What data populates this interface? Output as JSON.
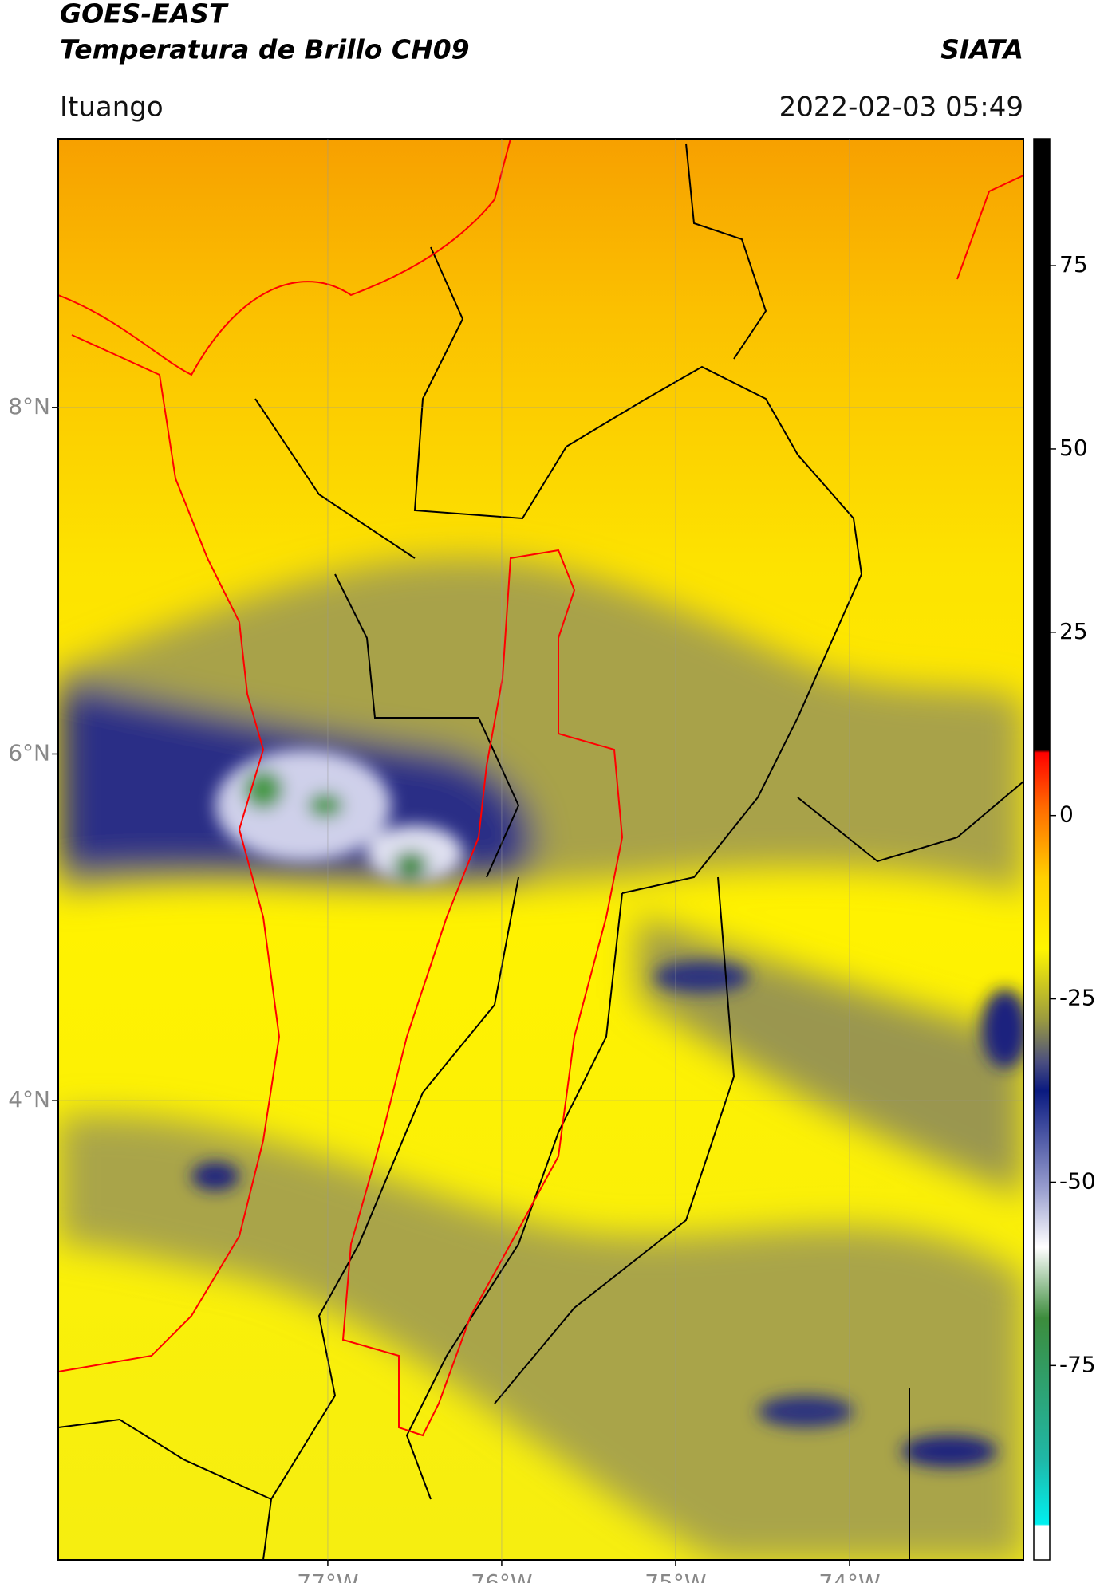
{
  "header": {
    "title": "GOES-EAST",
    "subtitle": "Temperatura de Brillo CH09",
    "source": "SIATA",
    "location": "Ituango",
    "timestamp": "2022-02-03 05:49"
  },
  "map": {
    "xlim": [
      -78.55,
      -73.0
    ],
    "ylim": [
      1.35,
      9.55
    ],
    "xticks": [
      {
        "value": -77,
        "label": "77°W"
      },
      {
        "value": -76,
        "label": "76°W"
      },
      {
        "value": -75,
        "label": "75°W"
      },
      {
        "value": -74,
        "label": "74°W"
      }
    ],
    "yticks": [
      {
        "value": 8,
        "label": "8°N"
      },
      {
        "value": 6,
        "label": "6°N"
      },
      {
        "value": 4,
        "label": "4°N"
      }
    ],
    "grid": true
  },
  "colorbar": {
    "lim": [
      -101.5,
      92.3
    ],
    "ticks": [
      75,
      50,
      25,
      0,
      -25,
      -50,
      -75
    ]
  }
}
